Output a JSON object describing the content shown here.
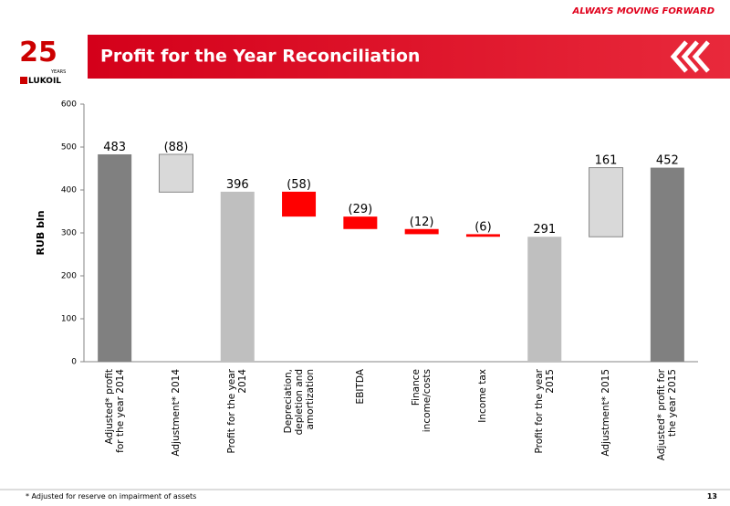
{
  "header": {
    "slogan": "ALWAYS MOVING FORWARD",
    "title": "Profit for the Year Reconciliation",
    "logo_number": "25",
    "logo_years": "YEARS",
    "logo_brand": "LUKOIL"
  },
  "footer": {
    "note": "* Adjusted for reserve on impairment of assets",
    "page": "13"
  },
  "chart_data": {
    "type": "waterfall",
    "y_label": "RUB bln",
    "categories": [
      "Adjusted* profit\nfor the year 2014",
      "Adjustment* 2014",
      "Profit for the year\n2014",
      "Depreciation,\ndepletion and\namortization",
      "EBITDA",
      "Finance\nincome/costs",
      "Income tax",
      "Profit for the year\n2015",
      "Adjustment* 2015",
      "Adjusted* profit for\nthe year 2015"
    ],
    "values": [
      483,
      -88,
      396,
      -58,
      -29,
      -12,
      -6,
      291,
      161,
      452
    ],
    "value_labels": [
      "483",
      "(88)",
      "396",
      "(58)",
      "(29)",
      "(12)",
      "(6)",
      "291",
      "161",
      "452"
    ],
    "totals": [
      true,
      false,
      true,
      false,
      false,
      false,
      false,
      true,
      false,
      true
    ],
    "colors": [
      "#808080",
      "#d9d9d9",
      "#bfbfbf",
      "#ff0000",
      "#ff0000",
      "#ff0000",
      "#ff0000",
      "#bfbfbf",
      "#d9d9d9",
      "#808080"
    ],
    "ylim": [
      0,
      600
    ],
    "yticks": [
      0,
      100,
      200,
      300,
      400,
      500,
      600
    ]
  }
}
